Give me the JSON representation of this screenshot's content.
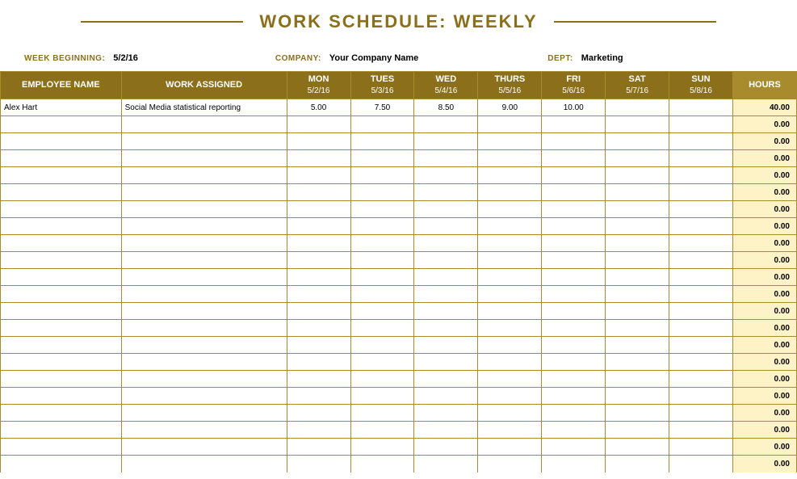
{
  "title": "WORK SCHEDULE: WEEKLY",
  "meta": {
    "week_label": "WEEK BEGINNING:",
    "week_value": "5/2/16",
    "company_label": "COMPANY:",
    "company_value": "Your Company Name",
    "dept_label": "DEPT:",
    "dept_value": "Marketing"
  },
  "columns": {
    "employee": "EMPLOYEE NAME",
    "assigned": "WORK ASSIGNED",
    "days": [
      {
        "name": "MON",
        "date": "5/2/16"
      },
      {
        "name": "TUES",
        "date": "5/3/16"
      },
      {
        "name": "WED",
        "date": "5/4/16"
      },
      {
        "name": "THURS",
        "date": "5/5/16"
      },
      {
        "name": "FRI",
        "date": "5/6/16"
      },
      {
        "name": "SAT",
        "date": "5/7/16"
      },
      {
        "name": "SUN",
        "date": "5/8/16"
      }
    ],
    "hours": "HOURS"
  },
  "rows": [
    {
      "employee": "Alex Hart",
      "work": "Social Media statistical reporting",
      "d": [
        "5.00",
        "7.50",
        "8.50",
        "9.00",
        "10.00",
        "",
        ""
      ],
      "total": "40.00"
    },
    {
      "employee": "",
      "work": "",
      "d": [
        "",
        "",
        "",
        "",
        "",
        "",
        ""
      ],
      "total": "0.00"
    },
    {
      "employee": "",
      "work": "",
      "d": [
        "",
        "",
        "",
        "",
        "",
        "",
        ""
      ],
      "total": "0.00"
    },
    {
      "employee": "",
      "work": "",
      "d": [
        "",
        "",
        "",
        "",
        "",
        "",
        ""
      ],
      "total": "0.00"
    },
    {
      "employee": "",
      "work": "",
      "d": [
        "",
        "",
        "",
        "",
        "",
        "",
        ""
      ],
      "total": "0.00"
    },
    {
      "employee": "",
      "work": "",
      "d": [
        "",
        "",
        "",
        "",
        "",
        "",
        ""
      ],
      "total": "0.00"
    },
    {
      "employee": "",
      "work": "",
      "d": [
        "",
        "",
        "",
        "",
        "",
        "",
        ""
      ],
      "total": "0.00"
    },
    {
      "employee": "",
      "work": "",
      "d": [
        "",
        "",
        "",
        "",
        "",
        "",
        ""
      ],
      "total": "0.00"
    },
    {
      "employee": "",
      "work": "",
      "d": [
        "",
        "",
        "",
        "",
        "",
        "",
        ""
      ],
      "total": "0.00"
    },
    {
      "employee": "",
      "work": "",
      "d": [
        "",
        "",
        "",
        "",
        "",
        "",
        ""
      ],
      "total": "0.00"
    },
    {
      "employee": "",
      "work": "",
      "d": [
        "",
        "",
        "",
        "",
        "",
        "",
        ""
      ],
      "total": "0.00"
    },
    {
      "employee": "",
      "work": "",
      "d": [
        "",
        "",
        "",
        "",
        "",
        "",
        ""
      ],
      "total": "0.00"
    },
    {
      "employee": "",
      "work": "",
      "d": [
        "",
        "",
        "",
        "",
        "",
        "",
        ""
      ],
      "total": "0.00"
    },
    {
      "employee": "",
      "work": "",
      "d": [
        "",
        "",
        "",
        "",
        "",
        "",
        ""
      ],
      "total": "0.00"
    },
    {
      "employee": "",
      "work": "",
      "d": [
        "",
        "",
        "",
        "",
        "",
        "",
        ""
      ],
      "total": "0.00"
    },
    {
      "employee": "",
      "work": "",
      "d": [
        "",
        "",
        "",
        "",
        "",
        "",
        ""
      ],
      "total": "0.00"
    },
    {
      "employee": "",
      "work": "",
      "d": [
        "",
        "",
        "",
        "",
        "",
        "",
        ""
      ],
      "total": "0.00"
    },
    {
      "employee": "",
      "work": "",
      "d": [
        "",
        "",
        "",
        "",
        "",
        "",
        ""
      ],
      "total": "0.00"
    },
    {
      "employee": "",
      "work": "",
      "d": [
        "",
        "",
        "",
        "",
        "",
        "",
        ""
      ],
      "total": "0.00"
    },
    {
      "employee": "",
      "work": "",
      "d": [
        "",
        "",
        "",
        "",
        "",
        "",
        ""
      ],
      "total": "0.00"
    },
    {
      "employee": "",
      "work": "",
      "d": [
        "",
        "",
        "",
        "",
        "",
        "",
        ""
      ],
      "total": "0.00"
    },
    {
      "employee": "",
      "work": "",
      "d": [
        "",
        "",
        "",
        "",
        "",
        "",
        ""
      ],
      "total": "0.00"
    }
  ],
  "style": {
    "header_bg": "#8b6f1a",
    "header_text": "#ffffff",
    "hours_header_bg": "#a88b2d",
    "border_color": "#a88b2d",
    "total_bg": "#fef3c7",
    "title_color": "#8b6f1a",
    "background": "#ffffff"
  }
}
